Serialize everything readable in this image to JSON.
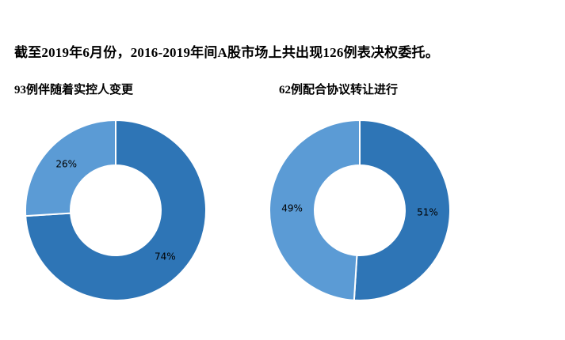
{
  "title": "截至2019年6月份，2016-2019年间A股市场上共出现126例表决权委托。",
  "colors": {
    "dark_blue": "#2E75B6",
    "light_blue": "#5B9BD5",
    "background": "#FFFFFF",
    "text": "#000000"
  },
  "chart_data": [
    {
      "type": "pie",
      "subtype": "donut",
      "title": "93例伴随着实控人变更",
      "total_cases": 93,
      "labels": [
        "74%",
        "26%"
      ],
      "values": [
        74,
        26
      ],
      "colors": [
        "#2E75B6",
        "#5B9BD5"
      ],
      "start_angle_deg": 0,
      "direction": "clockwise",
      "legend": "none",
      "slice_separator": "white"
    },
    {
      "type": "pie",
      "subtype": "donut",
      "title": "62例配合协议转让进行",
      "total_cases": 62,
      "labels": [
        "51%",
        "49%"
      ],
      "values": [
        51,
        49
      ],
      "colors": [
        "#2E75B6",
        "#5B9BD5"
      ],
      "start_angle_deg": 0,
      "direction": "clockwise",
      "legend": "none",
      "slice_separator": "white"
    }
  ]
}
